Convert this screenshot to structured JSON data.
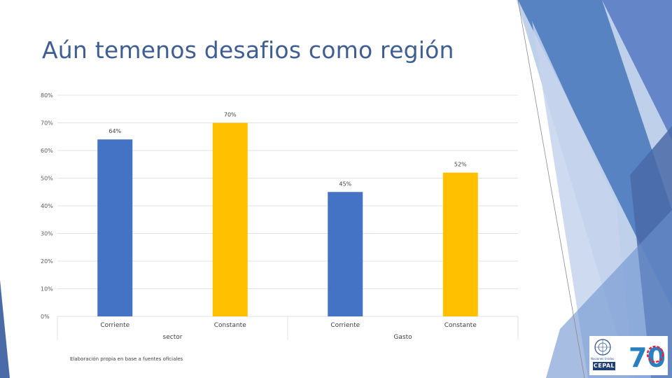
{
  "slide": {
    "title": "Aún temenos desafios como región",
    "source_note": "Elaboración propia en base a fuentes oficiales"
  },
  "logos": {
    "un_caption": "Naciones Unidas",
    "cepal_text": "CEPAL",
    "seventy_text": "70"
  },
  "colors": {
    "title": "#3f5e91",
    "corriente": "#4472c4",
    "constante": "#ffc000",
    "grid": "#d9d9d9"
  },
  "chart_data": {
    "type": "bar",
    "y_tick_labels": [
      "0%",
      "10%",
      "20%",
      "30%",
      "40%",
      "50%",
      "60%",
      "70%",
      "80%"
    ],
    "ylim": [
      0,
      80
    ],
    "grid": true,
    "legend": "none",
    "bars": [
      {
        "category": "Corriente",
        "group": "sector",
        "value": 64,
        "label": "64%",
        "color": "#4472c4"
      },
      {
        "category": "Constante",
        "group": "sector",
        "value": 70,
        "label": "70%",
        "color": "#ffc000"
      },
      {
        "category": "Corriente",
        "group": "Gasto",
        "value": 45,
        "label": "45%",
        "color": "#4472c4"
      },
      {
        "category": "Constante",
        "group": "Gasto",
        "value": 52,
        "label": "52%",
        "color": "#ffc000"
      }
    ],
    "groups": [
      "sector",
      "Gasto"
    ]
  }
}
